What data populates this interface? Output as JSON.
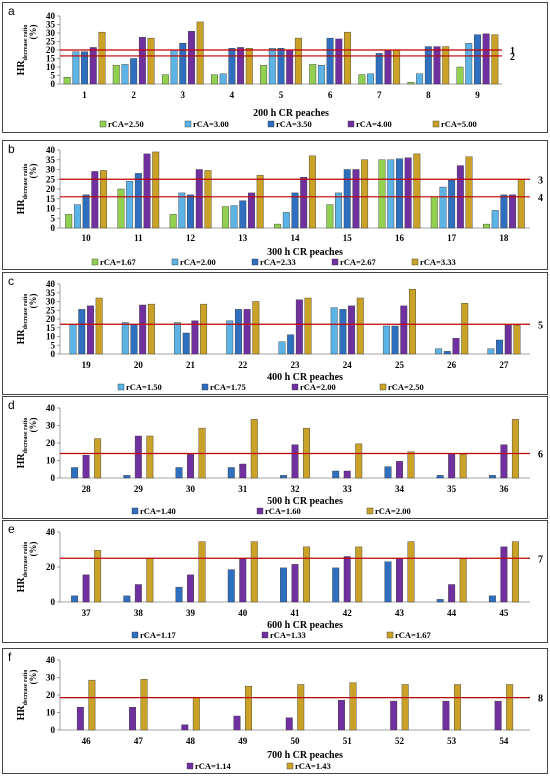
{
  "ylabel_main": "HR",
  "ylabel_sub": "decrease ratio",
  "ylabel_unit": "(%)",
  "chart_data": [
    {
      "type": "bar",
      "panel_letter": "a",
      "xlabel": "200 h CR peaches",
      "ylim": [
        0,
        40
      ],
      "yticks": [
        0,
        5,
        10,
        15,
        20,
        25,
        30,
        35,
        40
      ],
      "categories": [
        "1",
        "2",
        "3",
        "4",
        "5",
        "6",
        "7",
        "8",
        "9"
      ],
      "series": [
        {
          "name": "rCA=2.50",
          "color": "#92d050",
          "values": [
            4,
            11,
            5.5,
            5.5,
            11,
            11.5,
            5.5,
            1,
            10
          ]
        },
        {
          "name": "rCA=3.00",
          "color": "#5bb3e6",
          "values": [
            19,
            11.5,
            20,
            6,
            21,
            11,
            6,
            6,
            24
          ]
        },
        {
          "name": "rCA=3.50",
          "color": "#2e6fc0",
          "values": [
            19,
            15,
            24,
            21,
            21,
            27,
            18,
            22,
            29
          ]
        },
        {
          "name": "rCA=4.00",
          "color": "#7030a0",
          "values": [
            21.5,
            27.5,
            31,
            21.5,
            20,
            26.5,
            19.5,
            22,
            29.5
          ]
        },
        {
          "name": "rCA=5.00",
          "color": "#c9a227",
          "values": [
            30.5,
            27,
            36.5,
            21,
            27,
            30.5,
            20,
            22,
            29
          ]
        }
      ],
      "reference_lines": [
        {
          "y": 20,
          "label": "1"
        },
        {
          "y": 16.5,
          "label": "2"
        }
      ]
    },
    {
      "type": "bar",
      "panel_letter": "b",
      "xlabel": "300 h CR peaches",
      "ylim": [
        0,
        40
      ],
      "yticks": [
        0,
        5,
        10,
        15,
        20,
        25,
        30,
        35,
        40
      ],
      "categories": [
        "10",
        "11",
        "12",
        "13",
        "14",
        "15",
        "16",
        "17",
        "18"
      ],
      "series": [
        {
          "name": "rCA=1.67",
          "color": "#92d050",
          "values": [
            7,
            20,
            7,
            11,
            2,
            12,
            35,
            16,
            2
          ]
        },
        {
          "name": "rCA=2.00",
          "color": "#5bb3e6",
          "values": [
            12,
            24,
            18,
            11.5,
            8,
            18,
            35,
            21,
            9
          ]
        },
        {
          "name": "rCA=2.33",
          "color": "#2e6fc0",
          "values": [
            17,
            28,
            17,
            14,
            18,
            30,
            35.5,
            24.5,
            17
          ]
        },
        {
          "name": "rCA=2.67",
          "color": "#7030a0",
          "values": [
            29,
            38,
            30,
            18,
            26,
            30,
            36,
            32,
            17
          ]
        },
        {
          "name": "rCA=3.33",
          "color": "#c9a227",
          "values": [
            29.5,
            39,
            29.5,
            27,
            37,
            35,
            38,
            36.5,
            25
          ]
        }
      ],
      "reference_lines": [
        {
          "y": 25,
          "label": "3"
        },
        {
          "y": 16,
          "label": "4"
        }
      ]
    },
    {
      "type": "bar",
      "panel_letter": "c",
      "xlabel": "400 h CR peaches",
      "ylim": [
        0,
        40
      ],
      "yticks": [
        0,
        5,
        10,
        15,
        20,
        25,
        30,
        35,
        40
      ],
      "categories": [
        "19",
        "20",
        "21",
        "22",
        "23",
        "24",
        "25",
        "26",
        "27"
      ],
      "series": [
        {
          "name": "rCA=1.50",
          "color": "#5bb3e6",
          "values": [
            17,
            18,
            18,
            19,
            7,
            26.5,
            16,
            3,
            3
          ]
        },
        {
          "name": "rCA=1.75",
          "color": "#2e6fc0",
          "values": [
            25.5,
            17,
            12,
            25.5,
            11,
            25.5,
            16,
            1.5,
            8
          ]
        },
        {
          "name": "rCA=2.00",
          "color": "#7030a0",
          "values": [
            27.5,
            28,
            19,
            25.5,
            31,
            27.5,
            27.5,
            9,
            16.5
          ]
        },
        {
          "name": "rCA=2.50",
          "color": "#c9a227",
          "values": [
            32,
            28.5,
            28.5,
            30,
            32,
            32,
            37,
            29,
            16.5
          ]
        }
      ],
      "reference_lines": [
        {
          "y": 17,
          "label": "5"
        }
      ]
    },
    {
      "type": "bar",
      "panel_letter": "d",
      "xlabel": "500 h CR peaches",
      "ylim": [
        0,
        40
      ],
      "yticks": [
        0,
        10,
        20,
        30,
        40
      ],
      "categories": [
        "28",
        "29",
        "30",
        "31",
        "32",
        "33",
        "34",
        "35",
        "36"
      ],
      "series": [
        {
          "name": "rCA=1.40",
          "color": "#2e6fc0",
          "values": [
            6,
            1.5,
            6,
            6,
            1.5,
            4,
            6.5,
            1.5,
            1.5
          ]
        },
        {
          "name": "rCA=1.60",
          "color": "#7030a0",
          "values": [
            13,
            24,
            13.5,
            8,
            19,
            4,
            9.5,
            14,
            19
          ]
        },
        {
          "name": "rCA=2.00",
          "color": "#c9a227",
          "values": [
            22.5,
            24,
            28.5,
            33.5,
            28.5,
            19.5,
            15,
            13.5,
            33.5
          ]
        }
      ],
      "reference_lines": [
        {
          "y": 14,
          "label": "6"
        }
      ]
    },
    {
      "type": "bar",
      "panel_letter": "e",
      "xlabel": "600 h CR peaches",
      "ylim": [
        0,
        40
      ],
      "yticks": [
        0,
        20,
        40
      ],
      "categories": [
        "37",
        "38",
        "39",
        "40",
        "41",
        "42",
        "43",
        "44",
        "45"
      ],
      "series": [
        {
          "name": "rCA=1.17",
          "color": "#2e6fc0",
          "values": [
            3.5,
            3.5,
            8.5,
            18.5,
            19.5,
            19.5,
            23,
            1.5,
            3.5
          ]
        },
        {
          "name": "rCA=1.33",
          "color": "#7030a0",
          "values": [
            15.5,
            10,
            15.5,
            25,
            21.5,
            26,
            25,
            10,
            31.5
          ]
        },
        {
          "name": "rCA=1.67",
          "color": "#c9a227",
          "values": [
            29.5,
            25,
            34.5,
            34.5,
            31.5,
            31.5,
            34.5,
            25,
            34.5
          ]
        }
      ],
      "reference_lines": [
        {
          "y": 25,
          "label": "7"
        }
      ]
    },
    {
      "type": "bar",
      "panel_letter": "f",
      "xlabel": "700 h CR peaches",
      "ylim": [
        0,
        40
      ],
      "yticks": [
        0,
        10,
        20,
        30,
        40
      ],
      "categories": [
        "46",
        "47",
        "48",
        "49",
        "50",
        "51",
        "52",
        "53",
        "54"
      ],
      "series": [
        {
          "name": "rCA=1.14",
          "color": "#7030a0",
          "values": [
            13,
            13,
            3,
            8,
            7,
            17,
            16.5,
            16.5,
            16.5
          ]
        },
        {
          "name": "rCA=1.43",
          "color": "#c9a227",
          "values": [
            28.5,
            29,
            18.5,
            25,
            26,
            27,
            26,
            26,
            26
          ]
        }
      ],
      "reference_lines": [
        {
          "y": 18.5,
          "label": "8"
        }
      ]
    }
  ]
}
